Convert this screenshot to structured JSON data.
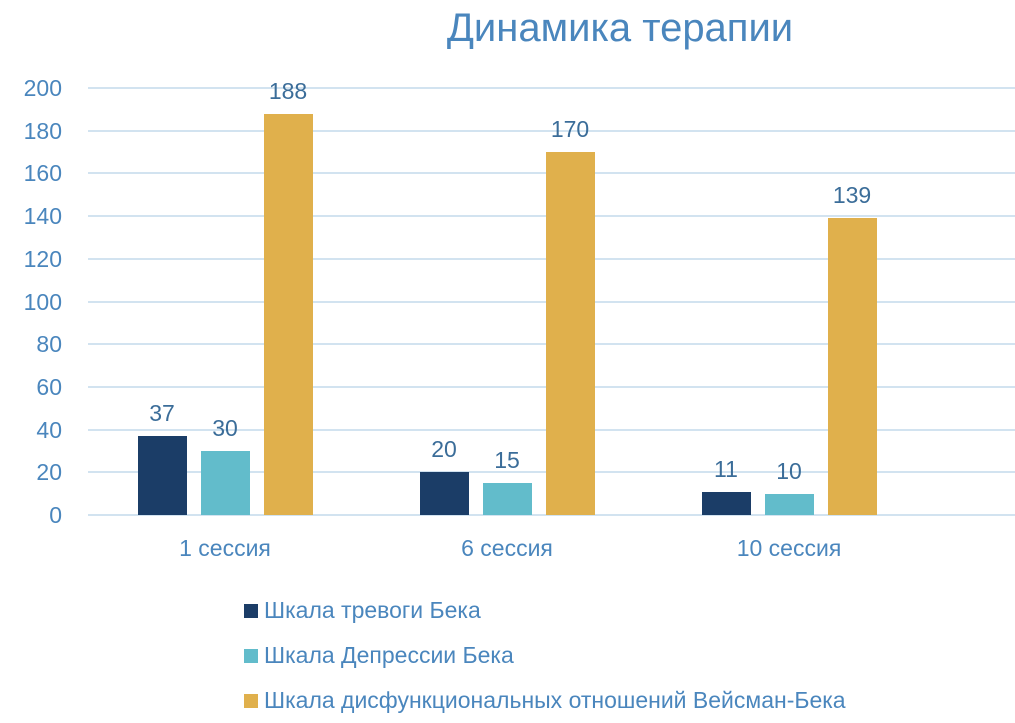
{
  "chart_data": {
    "type": "bar",
    "title": "Динамика терапии",
    "xlabel": "",
    "ylabel": "",
    "ylim": [
      0,
      200
    ],
    "yticks": [
      0,
      20,
      40,
      60,
      80,
      100,
      120,
      140,
      160,
      180,
      200
    ],
    "grid": true,
    "legend_position": "bottom",
    "categories": [
      "1 сессия",
      "6 сессия",
      "10 сессия"
    ],
    "series": [
      {
        "name": "Шкала тревоги Бека",
        "color": "#1b3d67",
        "values": [
          37,
          20,
          11
        ]
      },
      {
        "name": "Шкала Депрессии Бека",
        "color": "#62bccb",
        "values": [
          30,
          15,
          10
        ]
      },
      {
        "name": "Шкала дисфункциональных отношений Вейсман-Бека",
        "color": "#e0b04c",
        "values": [
          188,
          170,
          139
        ]
      }
    ]
  }
}
